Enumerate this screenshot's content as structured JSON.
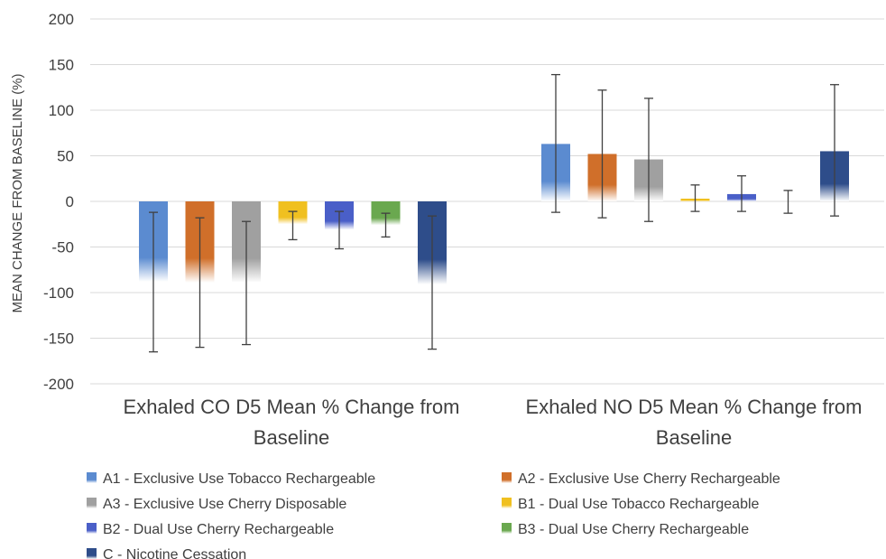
{
  "chart_data": {
    "type": "bar",
    "ylabel": "MEAN CHANGE FROM BASELINE (%)",
    "ylim": [
      -200,
      200
    ],
    "yticks": [
      200,
      150,
      100,
      50,
      0,
      -50,
      -100,
      -150,
      -200
    ],
    "grid": true,
    "legend_position": "bottom",
    "categories": [
      [
        "Exhaled CO D5 Mean % Change from",
        "Baseline"
      ],
      [
        "Exhaled NO D5 Mean % Change from",
        "Baseline"
      ]
    ],
    "series": [
      {
        "name": "A1 - Exclusive Use Tobacco Rechargeable",
        "color": "#5b8bd0",
        "values": [
          -88,
          63
        ],
        "err_low": [
          -165,
          -12
        ],
        "err_high": [
          -12,
          139
        ]
      },
      {
        "name": "A2 - Exclusive Use Cherry Rechargeable",
        "color": "#d06f2a",
        "values": [
          -89,
          52
        ],
        "err_low": [
          -160,
          -18
        ],
        "err_high": [
          -18,
          122
        ]
      },
      {
        "name": "A3 - Exclusive Use Cherry Disposable",
        "color": "#a0a0a0",
        "values": [
          -89,
          46
        ],
        "err_low": [
          -157,
          -22
        ],
        "err_high": [
          -22,
          113
        ]
      },
      {
        "name": "B1 - Dual Use Tobacco Rechargeable",
        "color": "#f0c020",
        "values": [
          -25,
          3
        ],
        "err_low": [
          -42,
          -11
        ],
        "err_high": [
          -11,
          18
        ]
      },
      {
        "name": "B2 - Dual Use Cherry Rechargeable",
        "color": "#4a5fc8",
        "values": [
          -31,
          8
        ],
        "err_low": [
          -52,
          -11
        ],
        "err_high": [
          -11,
          28
        ]
      },
      {
        "name": "B3 - Dual Use Cherry Rechargeable",
        "color": "#6aa84f",
        "values": [
          -26,
          0
        ],
        "err_low": [
          -39,
          -13
        ],
        "err_high": [
          -13,
          12
        ]
      },
      {
        "name": "C - Nicotine Cessation",
        "color": "#2e4d8a",
        "values": [
          -91,
          55
        ],
        "err_low": [
          -162,
          -16
        ],
        "err_high": [
          -16,
          128
        ]
      }
    ]
  }
}
